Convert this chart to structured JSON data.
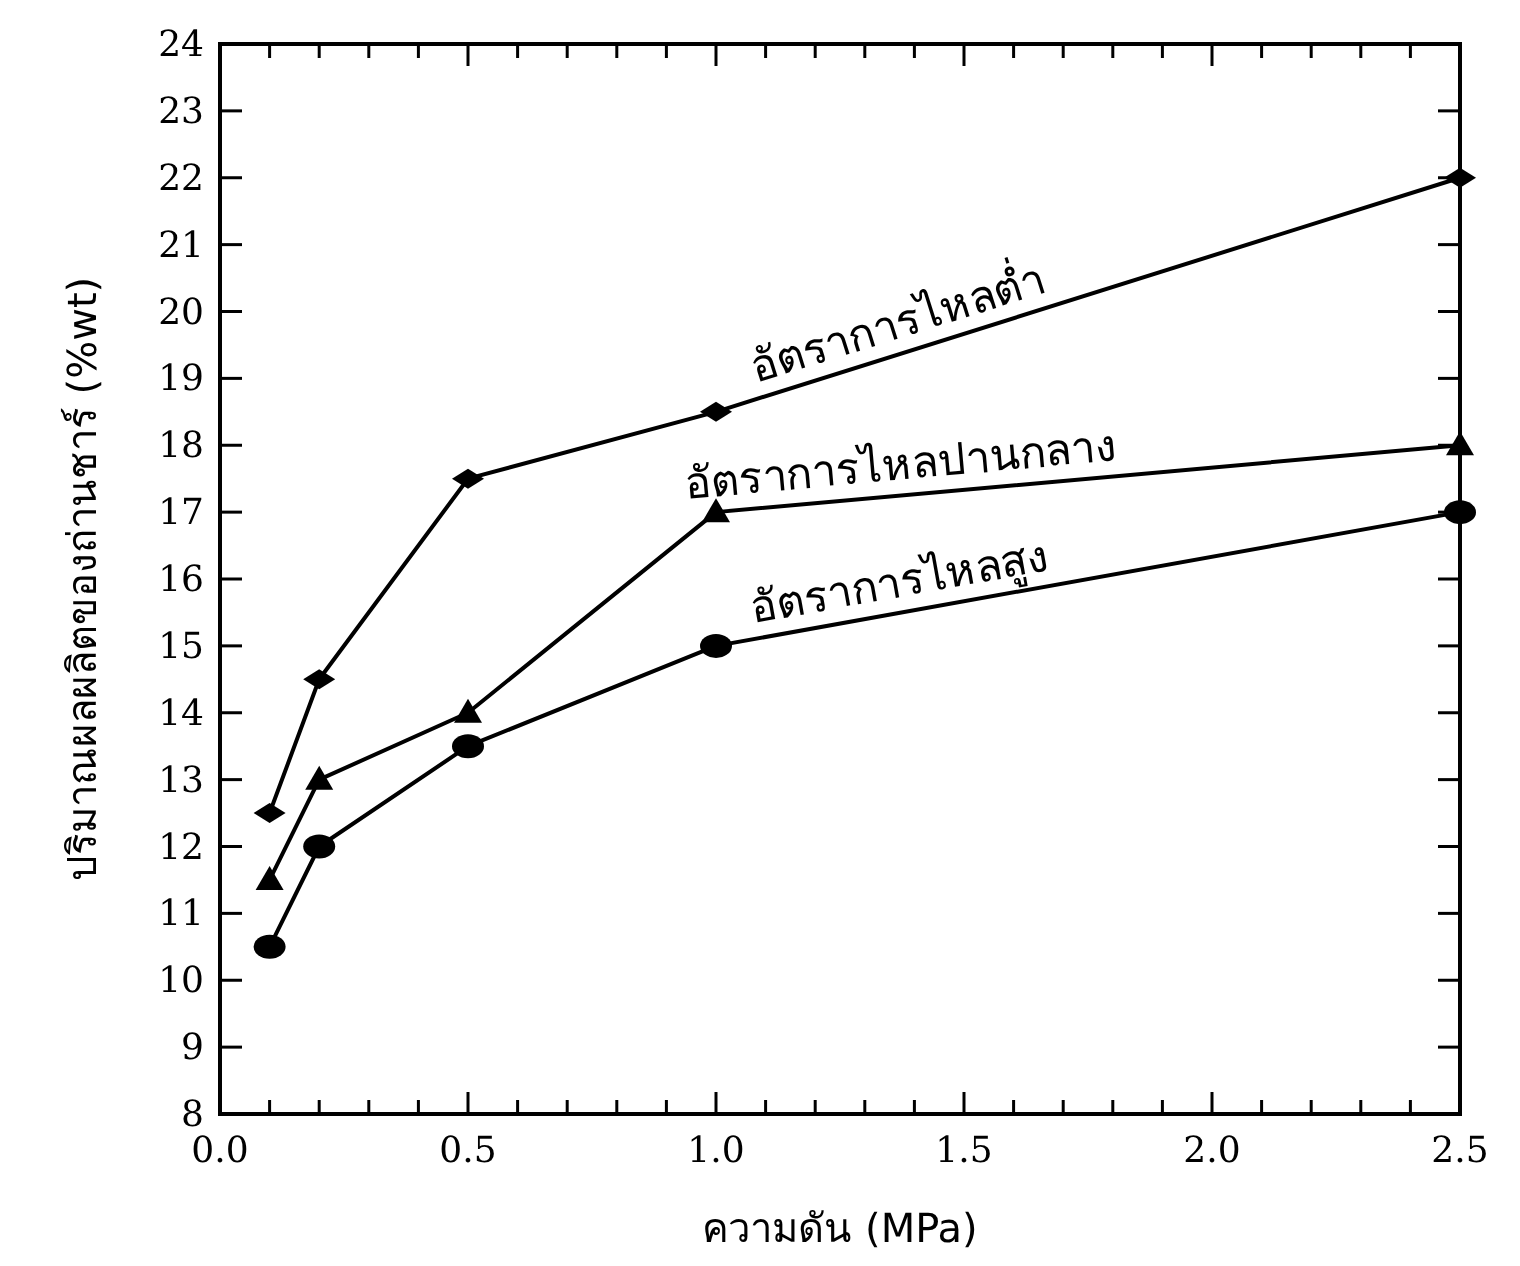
{
  "chart_data": {
    "type": "line",
    "xlabel": "ความดัน (MPa)",
    "ylabel": "ปริมาณผลผลิตของถ่านชาร์ (%wt)",
    "x": [
      0.1,
      0.2,
      0.5,
      1.0,
      2.5
    ],
    "series": [
      {
        "name": "อัตราการไหลต่ำ",
        "color": "#000000",
        "marker": "diamond",
        "values": [
          12.5,
          14.5,
          17.5,
          18.5,
          22
        ]
      },
      {
        "name": "อัตราการไหลปานกลาง",
        "color": "#000000",
        "marker": "triangle",
        "values": [
          11.5,
          13,
          14,
          17,
          18
        ]
      },
      {
        "name": "อัตราการไหลสูง",
        "color": "#000000",
        "marker": "circle",
        "values": [
          10.5,
          12,
          13.5,
          15,
          17
        ]
      }
    ],
    "xlim": [
      0,
      2.5
    ],
    "ylim": [
      8,
      24
    ],
    "xticks": [
      {
        "value": 0,
        "label": "0.0"
      },
      {
        "value": 0.1,
        "label": null
      },
      {
        "value": 0.2,
        "label": null
      },
      {
        "value": 0.3,
        "label": null
      },
      {
        "value": 0.4,
        "label": null
      },
      {
        "value": 0.5,
        "label": "0.5"
      },
      {
        "value": 0.6,
        "label": null
      },
      {
        "value": 0.7,
        "label": null
      },
      {
        "value": 0.8,
        "label": null
      },
      {
        "value": 0.9,
        "label": null
      },
      {
        "value": 1.0,
        "label": "1.0"
      },
      {
        "value": 1.1,
        "label": null
      },
      {
        "value": 1.2,
        "label": null
      },
      {
        "value": 1.3,
        "label": null
      },
      {
        "value": 1.4,
        "label": null
      },
      {
        "value": 1.5,
        "label": "1.5"
      },
      {
        "value": 1.6,
        "label": null
      },
      {
        "value": 1.7,
        "label": null
      },
      {
        "value": 1.8,
        "label": null
      },
      {
        "value": 1.9,
        "label": null
      },
      {
        "value": 2.0,
        "label": "2.0"
      },
      {
        "value": 2.1,
        "label": null
      },
      {
        "value": 2.2,
        "label": null
      },
      {
        "value": 2.3,
        "label": null
      },
      {
        "value": 2.4,
        "label": null
      },
      {
        "value": 2.5,
        "label": "2.5"
      }
    ],
    "yticks": [
      8,
      9,
      10,
      11,
      12,
      13,
      14,
      15,
      16,
      17,
      18,
      19,
      20,
      21,
      22,
      23,
      24
    ],
    "grid": false,
    "line_style": "solid"
  }
}
